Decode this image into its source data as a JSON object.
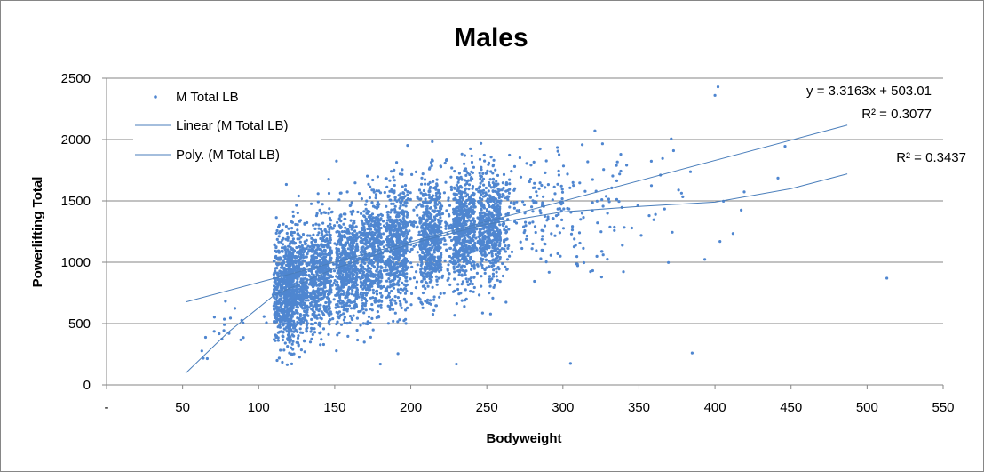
{
  "chart_data": {
    "type": "scatter",
    "title": "Males",
    "xlabel": "Bodyweight",
    "ylabel": "Powerlifting Total",
    "xlim": [
      0,
      550
    ],
    "ylim": [
      0,
      2500
    ],
    "x_ticks": [
      "-",
      "50",
      "100",
      "150",
      "200",
      "250",
      "300",
      "350",
      "400",
      "450",
      "500",
      "550"
    ],
    "y_ticks": [
      "0",
      "500",
      "1000",
      "1500",
      "2000",
      "2500"
    ],
    "grid": "horizontal",
    "legend_position": "top-left",
    "series": [
      {
        "name": "M Total LB",
        "kind": "markers",
        "color": "#4f86d0"
      },
      {
        "name": "Linear (M Total LB)",
        "kind": "trendline-linear",
        "color": "#4a7ebb",
        "slope": 3.3163,
        "intercept": 503.01,
        "x_range": [
          52,
          487
        ]
      },
      {
        "name": "Poly. (M Total LB)",
        "kind": "trendline-polynomial",
        "color": "#4a7ebb",
        "points": [
          [
            52,
            95
          ],
          [
            80,
            430
          ],
          [
            110,
            730
          ],
          [
            150,
            950
          ],
          [
            200,
            1150
          ],
          [
            250,
            1310
          ],
          [
            300,
            1410
          ],
          [
            350,
            1455
          ],
          [
            400,
            1490
          ],
          [
            450,
            1600
          ],
          [
            487,
            1720
          ]
        ]
      }
    ],
    "annotations": {
      "linear_equation": "y = 3.3163x + 503.01",
      "linear_r2": "R² = 0.3077",
      "poly_r2": "R² = 0.3437"
    },
    "notable_points": [
      [
        402,
        2430
      ],
      [
        400,
        2360
      ],
      [
        513,
        870
      ],
      [
        385,
        260
      ],
      [
        305,
        175
      ],
      [
        230,
        170
      ],
      [
        180,
        170
      ]
    ]
  }
}
